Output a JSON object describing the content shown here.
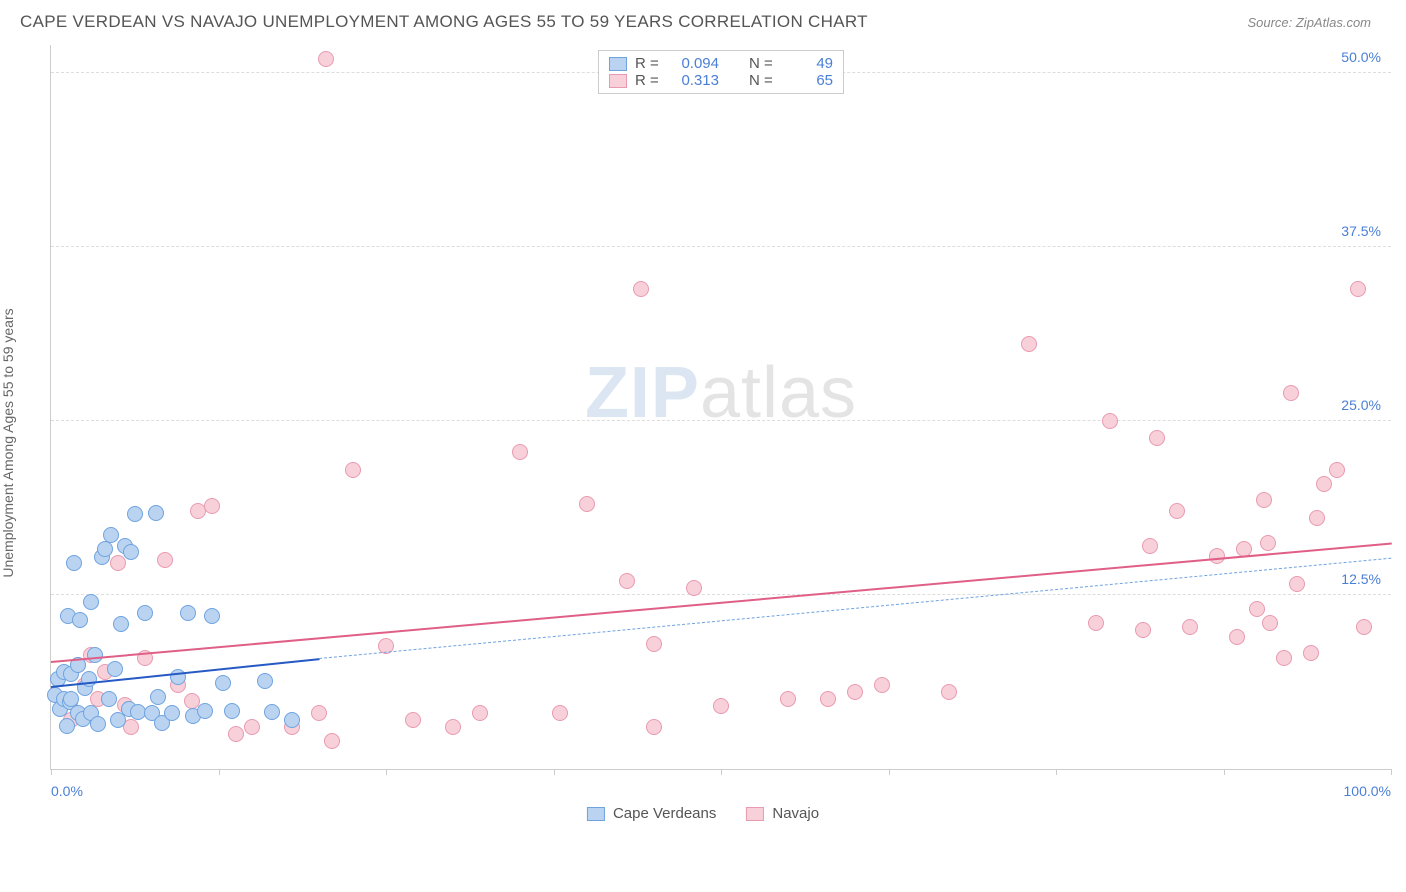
{
  "header": {
    "title": "CAPE VERDEAN VS NAVAJO UNEMPLOYMENT AMONG AGES 55 TO 59 YEARS CORRELATION CHART",
    "source": "Source: ZipAtlas.com"
  },
  "chart": {
    "type": "scatter",
    "ylabel": "Unemployment Among Ages 55 to 59 years",
    "xlim": [
      0,
      100
    ],
    "ylim": [
      0,
      52
    ],
    "xtick_labels": [
      {
        "pos": 0,
        "label": "0.0%"
      },
      {
        "pos": 100,
        "label": "100.0%"
      }
    ],
    "xtick_marks": [
      0,
      12.5,
      25,
      37.5,
      50,
      62.5,
      75,
      87.5,
      100
    ],
    "ytick_labels": [
      {
        "pos": 12.5,
        "label": "12.5%"
      },
      {
        "pos": 25.0,
        "label": "25.0%"
      },
      {
        "pos": 37.5,
        "label": "37.5%"
      },
      {
        "pos": 50.0,
        "label": "50.0%"
      }
    ],
    "gridlines_y": [
      12.5,
      25.0,
      37.5,
      50.0
    ],
    "grid_color": "#dddddd",
    "background": "#ffffff",
    "series": [
      {
        "name": "Cape Verdeans",
        "color_fill": "#b9d3f0",
        "color_stroke": "#6fa3e0",
        "marker_radius": 8,
        "trend_color_solid": "#2659c4",
        "trend_color_dash": "#6fa3e0",
        "trend": {
          "x1": 0,
          "y1": 6.0,
          "x2": 20,
          "y2": 8.0,
          "x2_dash": 100,
          "y2_dash": 15.2
        },
        "points": [
          [
            0.3,
            5.3
          ],
          [
            0.5,
            6.5
          ],
          [
            0.7,
            4.3
          ],
          [
            1.0,
            7.0
          ],
          [
            1.0,
            5.0
          ],
          [
            1.2,
            3.1
          ],
          [
            1.3,
            11.0
          ],
          [
            1.4,
            4.8
          ],
          [
            1.5,
            6.8
          ],
          [
            1.5,
            5.0
          ],
          [
            1.7,
            14.8
          ],
          [
            2.0,
            7.5
          ],
          [
            2.0,
            4.0
          ],
          [
            2.2,
            10.7
          ],
          [
            2.4,
            3.6
          ],
          [
            2.5,
            5.8
          ],
          [
            2.8,
            6.5
          ],
          [
            3.0,
            12.0
          ],
          [
            3.0,
            4.0
          ],
          [
            3.3,
            8.2
          ],
          [
            3.5,
            3.2
          ],
          [
            3.8,
            15.2
          ],
          [
            4.0,
            15.8
          ],
          [
            4.3,
            5.0
          ],
          [
            4.5,
            16.8
          ],
          [
            4.8,
            7.2
          ],
          [
            5.0,
            3.5
          ],
          [
            5.2,
            10.4
          ],
          [
            5.5,
            16.0
          ],
          [
            5.8,
            4.3
          ],
          [
            6.0,
            15.6
          ],
          [
            6.3,
            18.3
          ],
          [
            6.5,
            4.1
          ],
          [
            7.0,
            11.2
          ],
          [
            7.5,
            4.0
          ],
          [
            7.8,
            18.4
          ],
          [
            8.0,
            5.2
          ],
          [
            8.3,
            3.3
          ],
          [
            9.0,
            4.0
          ],
          [
            9.5,
            6.6
          ],
          [
            10.2,
            11.2
          ],
          [
            10.6,
            3.8
          ],
          [
            11.5,
            4.2
          ],
          [
            12.0,
            11.0
          ],
          [
            12.8,
            6.2
          ],
          [
            13.5,
            4.2
          ],
          [
            16.0,
            6.3
          ],
          [
            16.5,
            4.1
          ],
          [
            18.0,
            3.5
          ]
        ]
      },
      {
        "name": "Navajo",
        "color_fill": "#f8d0d9",
        "color_stroke": "#e89bb0",
        "marker_radius": 8,
        "trend_color_solid": "#e05f87",
        "trend": {
          "x1": 0,
          "y1": 7.8,
          "x2": 100,
          "y2": 16.3
        },
        "points": [
          [
            1.0,
            4.8
          ],
          [
            1.5,
            3.5
          ],
          [
            2.0,
            7.5
          ],
          [
            2.5,
            6.0
          ],
          [
            3.0,
            8.2
          ],
          [
            3.5,
            5.0
          ],
          [
            4.0,
            7.0
          ],
          [
            5.0,
            14.8
          ],
          [
            5.5,
            4.6
          ],
          [
            6.0,
            3.0
          ],
          [
            7.0,
            8.0
          ],
          [
            8.5,
            15.0
          ],
          [
            9.5,
            6.0
          ],
          [
            10.5,
            4.9
          ],
          [
            11.0,
            18.5
          ],
          [
            12.0,
            18.9
          ],
          [
            13.8,
            2.5
          ],
          [
            15.0,
            3.0
          ],
          [
            18.0,
            3.0
          ],
          [
            20.0,
            4.0
          ],
          [
            21.0,
            2.0
          ],
          [
            20.5,
            51.0
          ],
          [
            22.5,
            21.5
          ],
          [
            25.0,
            8.8
          ],
          [
            27.0,
            3.5
          ],
          [
            30.0,
            3.0
          ],
          [
            32.0,
            4.0
          ],
          [
            35.0,
            22.8
          ],
          [
            38.0,
            4.0
          ],
          [
            40.0,
            19.0
          ],
          [
            43.0,
            13.5
          ],
          [
            44.0,
            34.5
          ],
          [
            45.0,
            3.0
          ],
          [
            45.0,
            9.0
          ],
          [
            48.0,
            13.0
          ],
          [
            50.0,
            4.5
          ],
          [
            55.0,
            5.0
          ],
          [
            58.0,
            5.0
          ],
          [
            60.0,
            5.5
          ],
          [
            62.0,
            6.0
          ],
          [
            67.0,
            5.5
          ],
          [
            73.0,
            30.5
          ],
          [
            78.0,
            10.5
          ],
          [
            79.0,
            25.0
          ],
          [
            81.5,
            10.0
          ],
          [
            82.0,
            16.0
          ],
          [
            82.5,
            23.8
          ],
          [
            84.0,
            18.5
          ],
          [
            85.0,
            10.2
          ],
          [
            87.0,
            15.3
          ],
          [
            88.5,
            9.5
          ],
          [
            89.0,
            15.8
          ],
          [
            90.0,
            11.5
          ],
          [
            90.5,
            19.3
          ],
          [
            90.8,
            16.2
          ],
          [
            91.0,
            10.5
          ],
          [
            92.0,
            8.0
          ],
          [
            92.5,
            27.0
          ],
          [
            93.0,
            13.3
          ],
          [
            94.0,
            8.3
          ],
          [
            94.5,
            18.0
          ],
          [
            95.0,
            20.5
          ],
          [
            96.0,
            21.5
          ],
          [
            97.5,
            34.5
          ],
          [
            98.0,
            10.2
          ]
        ]
      }
    ],
    "stats_box": {
      "rows": [
        {
          "color_fill": "#b9d3f0",
          "color_stroke": "#6fa3e0",
          "r": "0.094",
          "n": "49"
        },
        {
          "color_fill": "#f8d0d9",
          "color_stroke": "#e89bb0",
          "r": "0.313",
          "n": "65"
        }
      ],
      "labels": {
        "r": "R =",
        "n": "N ="
      }
    },
    "bottom_legend": [
      {
        "label": "Cape Verdeans",
        "fill": "#b9d3f0",
        "stroke": "#6fa3e0"
      },
      {
        "label": "Navajo",
        "fill": "#f8d0d9",
        "stroke": "#e89bb0"
      }
    ],
    "watermark": {
      "a": "ZIP",
      "b": "atlas"
    }
  }
}
